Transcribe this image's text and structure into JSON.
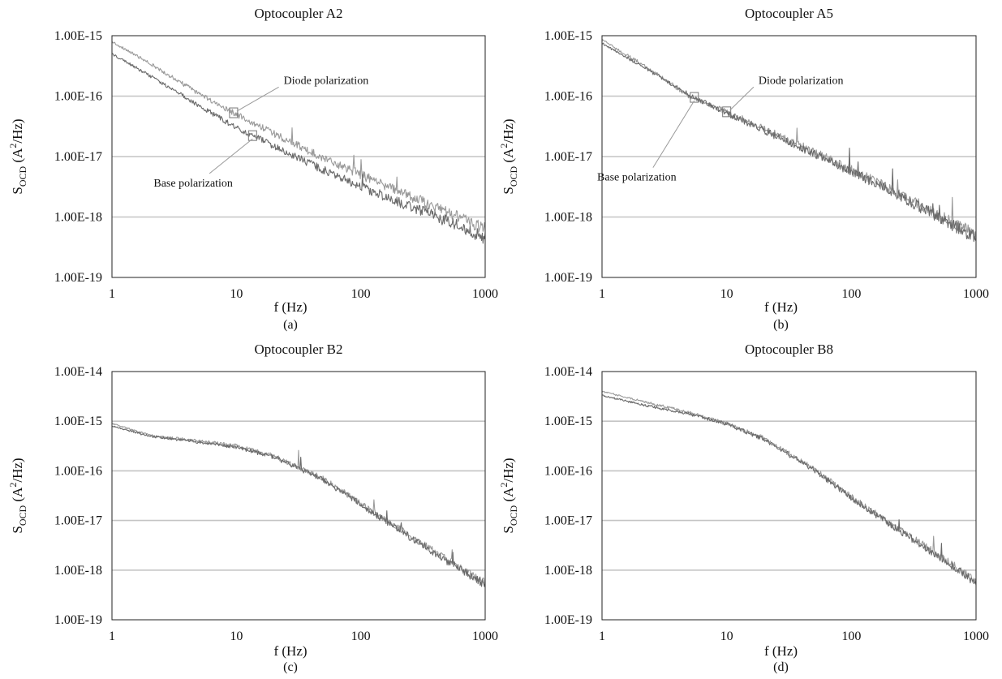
{
  "chart_data": [
    {
      "type": "line",
      "title": "Optocoupler A2",
      "panel_label": "(a)",
      "xlabel": "f (Hz)",
      "ylabel": {
        "main": "S",
        "sub": "OCD",
        "open": " (A",
        "sup": "2",
        "close": "/Hz)"
      },
      "x_scale": "log",
      "y_scale": "log",
      "xlim": [
        1,
        1000
      ],
      "ylim": [
        1e-19,
        1e-15
      ],
      "xticks": [
        1,
        10,
        100,
        1000
      ],
      "xtick_labels": [
        "1",
        "10",
        "100",
        "1000"
      ],
      "yticks": [
        1e-19,
        1e-18,
        1e-17,
        1e-16,
        1e-15
      ],
      "ytick_labels": [
        "1.00E-19",
        "1.00E-18",
        "1.00E-17",
        "1.00E-16",
        "1.00E-15"
      ],
      "grid": "horizontal",
      "series": [
        {
          "name": "Diode polarization",
          "color": "#9a9a9a",
          "noise": 0.05,
          "x": [
            1,
            2,
            5,
            10,
            20,
            50,
            100,
            200,
            500,
            1000
          ],
          "y": [
            8e-16,
            3.5e-16,
            1.1e-16,
            5e-17,
            2.4e-17,
            9.5e-18,
            5e-18,
            2.7e-18,
            1.2e-18,
            6.3e-19
          ]
        },
        {
          "name": "Base polarization",
          "color": "#6a6a6a",
          "noise": 0.05,
          "x": [
            1,
            2,
            5,
            10,
            20,
            50,
            100,
            200,
            500,
            1000
          ],
          "y": [
            5e-16,
            2.2e-16,
            7e-17,
            3e-17,
            1.5e-17,
            6e-18,
            3.2e-18,
            1.8e-18,
            8.5e-19,
            4.5e-19
          ]
        }
      ],
      "annotations": [
        {
          "text": "Diode polarization",
          "series": 0,
          "at_x": 9.5,
          "text_x": 24,
          "text_y": 1.6e-16
        },
        {
          "text": "Base polarization",
          "series": 1,
          "at_x": 13.5,
          "text_x": 4.5,
          "text_y": 3.2e-18
        }
      ]
    },
    {
      "type": "line",
      "title": "Optocoupler A5",
      "panel_label": "(b)",
      "xlabel": "f (Hz)",
      "ylabel": {
        "main": "S",
        "sub": "OCD",
        "open": " (A",
        "sup": "2",
        "close": "/Hz)"
      },
      "x_scale": "log",
      "y_scale": "log",
      "xlim": [
        1,
        1000
      ],
      "ylim": [
        1e-19,
        1e-15
      ],
      "xticks": [
        1,
        10,
        100,
        1000
      ],
      "xtick_labels": [
        "1",
        "10",
        "100",
        "1000"
      ],
      "yticks": [
        1e-19,
        1e-18,
        1e-17,
        1e-16,
        1e-15
      ],
      "ytick_labels": [
        "1.00E-19",
        "1.00E-18",
        "1.00E-17",
        "1.00E-16",
        "1.00E-15"
      ],
      "grid": "horizontal",
      "series": [
        {
          "name": "Diode polarization",
          "color": "#9a9a9a",
          "noise": 0.05,
          "x": [
            1,
            2,
            5,
            10,
            20,
            50,
            100,
            200,
            500,
            1000
          ],
          "y": [
            8.5e-16,
            3.6e-16,
            1e-16,
            5.5e-17,
            2.9e-17,
            1.2e-17,
            6e-18,
            3e-18,
            1.1e-18,
            5e-19
          ]
        },
        {
          "name": "Base polarization",
          "color": "#6a6a6a",
          "noise": 0.05,
          "x": [
            1,
            2,
            5,
            10,
            20,
            50,
            100,
            200,
            500,
            1000
          ],
          "y": [
            7.5e-16,
            3.3e-16,
            1.05e-16,
            5.2e-17,
            2.7e-17,
            1.1e-17,
            5.6e-18,
            2.8e-18,
            1e-18,
            4.5e-19
          ]
        }
      ],
      "annotations": [
        {
          "text": "Diode polarization",
          "series": 0,
          "at_x": 10,
          "text_x": 18,
          "text_y": 1.6e-16
        },
        {
          "text": "Base polarization",
          "series": 1,
          "at_x": 5.5,
          "text_x": 1.9,
          "text_y": 4e-18
        }
      ]
    },
    {
      "type": "line",
      "title": "Optocoupler B2",
      "panel_label": "(c)",
      "xlabel": "f (Hz)",
      "ylabel": {
        "main": "S",
        "sub": "OCD",
        "open": " (A",
        "sup": "2",
        "close": "/Hz)"
      },
      "x_scale": "log",
      "y_scale": "log",
      "xlim": [
        1,
        1000
      ],
      "ylim": [
        1e-19,
        1e-14
      ],
      "xticks": [
        1,
        10,
        100,
        1000
      ],
      "xtick_labels": [
        "1",
        "10",
        "100",
        "1000"
      ],
      "yticks": [
        1e-19,
        1e-18,
        1e-17,
        1e-16,
        1e-15,
        1e-14
      ],
      "ytick_labels": [
        "1.00E-19",
        "1.00E-18",
        "1.00E-17",
        "1.00E-16",
        "1.00E-15",
        "1.00E-14"
      ],
      "grid": "horizontal",
      "series": [
        {
          "name": "Diode polarization",
          "color": "#9a9a9a",
          "noise": 0.04,
          "x": [
            1,
            2,
            5,
            10,
            20,
            50,
            100,
            200,
            500,
            1000
          ],
          "y": [
            9e-16,
            5.2e-16,
            4e-16,
            3.2e-16,
            2e-16,
            7e-17,
            2.2e-17,
            7e-18,
            1.6e-18,
            5.5e-19
          ]
        },
        {
          "name": "Base polarization",
          "color": "#6a6a6a",
          "noise": 0.04,
          "x": [
            1,
            2,
            5,
            10,
            20,
            50,
            100,
            200,
            500,
            1000
          ],
          "y": [
            8e-16,
            5e-16,
            3.8e-16,
            3e-16,
            1.9e-16,
            6.6e-17,
            2.1e-17,
            6.6e-18,
            1.5e-18,
            5e-19
          ]
        }
      ],
      "annotations": []
    },
    {
      "type": "line",
      "title": "Optocoupler B8",
      "panel_label": "(d)",
      "xlabel": "f (Hz)",
      "ylabel": {
        "main": "S",
        "sub": "OCD",
        "open": " (A",
        "sup": "2",
        "close": "/Hz)"
      },
      "x_scale": "log",
      "y_scale": "log",
      "xlim": [
        1,
        1000
      ],
      "ylim": [
        1e-19,
        1e-14
      ],
      "xticks": [
        1,
        10,
        100,
        1000
      ],
      "xtick_labels": [
        "1",
        "10",
        "100",
        "1000"
      ],
      "yticks": [
        1e-19,
        1e-18,
        1e-17,
        1e-16,
        1e-15,
        1e-14
      ],
      "ytick_labels": [
        "1.00E-19",
        "1.00E-18",
        "1.00E-17",
        "1.00E-16",
        "1.00E-15",
        "1.00E-14"
      ],
      "grid": "horizontal",
      "series": [
        {
          "name": "Diode polarization",
          "color": "#9a9a9a",
          "noise": 0.04,
          "x": [
            1,
            2,
            5,
            10,
            20,
            50,
            100,
            200,
            500,
            1000
          ],
          "y": [
            4e-15,
            2.6e-15,
            1.5e-15,
            9e-16,
            4.5e-16,
            1.1e-16,
            3e-17,
            9e-18,
            2e-18,
            6e-19
          ]
        },
        {
          "name": "Base polarization",
          "color": "#6a6a6a",
          "noise": 0.04,
          "x": [
            1,
            2,
            5,
            10,
            20,
            50,
            100,
            200,
            500,
            1000
          ],
          "y": [
            3.3e-15,
            2.2e-15,
            1.4e-15,
            8.8e-16,
            4.3e-16,
            1.05e-16,
            2.9e-17,
            8.6e-18,
            1.9e-18,
            5.5e-19
          ]
        }
      ],
      "annotations": []
    }
  ]
}
